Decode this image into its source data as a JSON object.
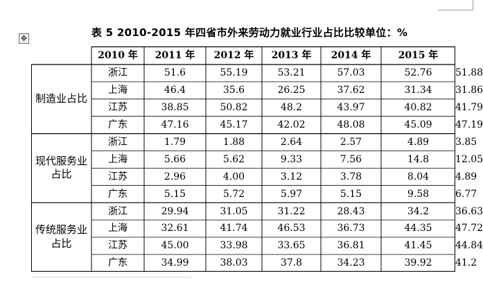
{
  "table": {
    "handle_icon": "move-icon",
    "caption": "表 5 2010-2015 年四省市外来劳动力就业行业占比比较单位：%",
    "header": [
      "2010 年",
      "2011 年",
      "2012 年",
      "2013 年",
      "2014 年",
      "2015 年"
    ],
    "groups": [
      {
        "label": "制造业占比",
        "rows": [
          {
            "province": "浙江",
            "values": [
              "51.6",
              "55.19",
              "53.21",
              "57.03",
              "52.76",
              "51.88"
            ]
          },
          {
            "province": "上海",
            "values": [
              "46.4",
              "35.6",
              "26.25",
              "37.62",
              "31.34",
              "31.86"
            ]
          },
          {
            "province": "江苏",
            "values": [
              "38.85",
              "50.82",
              "48.2",
              "43.97",
              "40.82",
              "41.79"
            ]
          },
          {
            "province": "广东",
            "values": [
              "47.16",
              "45.17",
              "42.02",
              "48.08",
              "45.09",
              "47.19"
            ]
          }
        ]
      },
      {
        "label": "现代服务业占比",
        "rows": [
          {
            "province": "浙江",
            "values": [
              "1.79",
              "1.88",
              "2.64",
              "2.57",
              "4.89",
              "3.85"
            ]
          },
          {
            "province": "上海",
            "values": [
              "5.66",
              "5.62",
              "9.33",
              "7.56",
              "14.8",
              "12.05"
            ]
          },
          {
            "province": "江苏",
            "values": [
              "2.96",
              "4.00",
              "3.12",
              "3.78",
              "8.04",
              "4.89"
            ]
          },
          {
            "province": "广东",
            "values": [
              "5.15",
              "5.72",
              "5.97",
              "5.15",
              "9.58",
              "6.77"
            ]
          }
        ]
      },
      {
        "label": "传统服务业占比",
        "rows": [
          {
            "province": "浙江",
            "values": [
              "29.94",
              "31.05",
              "31.22",
              "28.43",
              "34.2",
              "36.63"
            ]
          },
          {
            "province": "上海",
            "values": [
              "32.61",
              "41.74",
              "46.53",
              "36.73",
              "44.35",
              "47.72"
            ]
          },
          {
            "province": "江苏",
            "values": [
              "45.00",
              "33.98",
              "33.65",
              "36.81",
              "41.45",
              "44.84"
            ]
          },
          {
            "province": "广东",
            "values": [
              "34.99",
              "38.03",
              "37.8",
              "34.23",
              "39.92",
              "41.2"
            ]
          }
        ]
      }
    ]
  }
}
